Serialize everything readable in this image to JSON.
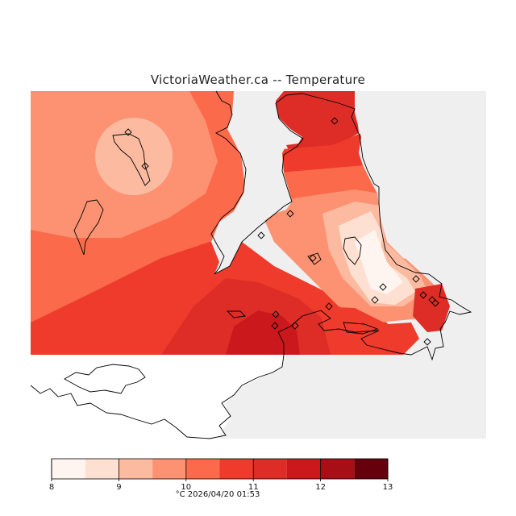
{
  "title": "VictoriaWeather.ca  --  Temperature",
  "legend": {
    "unit": "°C",
    "ticks": [
      "8",
      "9",
      "10",
      "11",
      "12",
      "13"
    ],
    "min": 8,
    "max": 13,
    "step": 0.5,
    "colors": [
      "#fff5f0",
      "#fee0d2",
      "#fcbba1",
      "#fc9272",
      "#fb6a4a",
      "#ef3b2c",
      "#de2d26",
      "#cb181d",
      "#a50f15",
      "#67000d"
    ]
  },
  "timestamp": "2026/04/20 01:53",
  "footer_text": "°C  2026/04/20 01:53",
  "map": {
    "land_color": "#efefef",
    "no_data_color": "#ffffff",
    "station_marker": "diamond"
  }
}
